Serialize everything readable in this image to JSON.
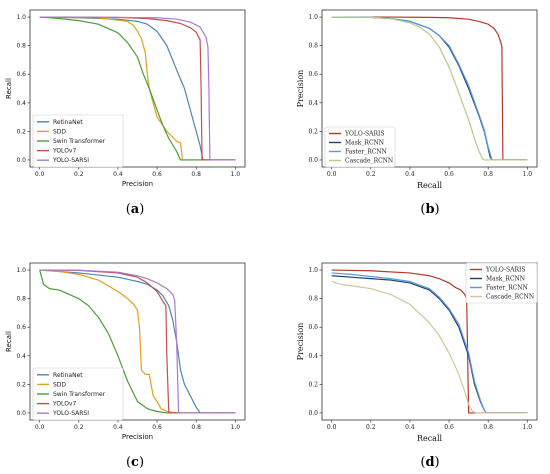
{
  "chart_data": [
    {
      "panel_label": {
        "open": "(",
        "letter": "a",
        "close": ")"
      },
      "type": "line",
      "title": "",
      "xlabel": "Precision",
      "ylabel": "Recall",
      "xlim": [
        0,
        1
      ],
      "ylim": [
        0,
        1
      ],
      "xticks": [
        "0.0",
        "0.2",
        "0.4",
        "0.6",
        "0.8",
        "1.0"
      ],
      "yticks": [
        "0.0",
        "0.2",
        "0.4",
        "0.6",
        "0.8",
        "1.0"
      ],
      "legend_position": "bottom-left",
      "grid": false,
      "series": [
        {
          "name": "RetinaNet",
          "color": "#4b86b4",
          "x": [
            0,
            0.2,
            0.4,
            0.5,
            0.55,
            0.6,
            0.65,
            0.7,
            0.74,
            0.78,
            0.8,
            0.82,
            0.83,
            0.835,
            1.0
          ],
          "y": [
            1,
            0.995,
            0.985,
            0.97,
            0.95,
            0.9,
            0.8,
            0.63,
            0.5,
            0.3,
            0.2,
            0.1,
            0.03,
            0,
            0
          ]
        },
        {
          "name": "SDD",
          "color": "#e0a020",
          "x": [
            0,
            0.3,
            0.45,
            0.48,
            0.5,
            0.52,
            0.54,
            0.55,
            0.56,
            0.58,
            0.6,
            0.65,
            0.7,
            0.72,
            0.73,
            1.0
          ],
          "y": [
            1,
            0.995,
            0.97,
            0.94,
            0.9,
            0.85,
            0.75,
            0.6,
            0.5,
            0.4,
            0.3,
            0.2,
            0.13,
            0.12,
            0,
            0
          ]
        },
        {
          "name": "Swin Transformer",
          "color": "#4e9a3a",
          "x": [
            0,
            0.1,
            0.2,
            0.3,
            0.4,
            0.45,
            0.5,
            0.53,
            0.56,
            0.6,
            0.63,
            0.66,
            0.7,
            0.72,
            1.0
          ],
          "y": [
            1,
            0.99,
            0.975,
            0.95,
            0.89,
            0.82,
            0.72,
            0.6,
            0.5,
            0.35,
            0.24,
            0.15,
            0.06,
            0,
            0
          ]
        },
        {
          "name": "YOLOv7",
          "color": "#c0504d",
          "x": [
            0,
            0.2,
            0.4,
            0.55,
            0.65,
            0.72,
            0.77,
            0.8,
            0.82,
            0.825,
            0.83,
            1.0
          ],
          "y": [
            1,
            0.999,
            0.997,
            0.99,
            0.975,
            0.955,
            0.925,
            0.895,
            0.84,
            0.5,
            0,
            0
          ]
        },
        {
          "name": "YOLO-SARSI",
          "color": "#a67ad0",
          "x": [
            0,
            0.2,
            0.4,
            0.6,
            0.7,
            0.77,
            0.82,
            0.85,
            0.86,
            0.865,
            0.87,
            1.0
          ],
          "y": [
            1,
            0.999,
            0.998,
            0.995,
            0.985,
            0.965,
            0.93,
            0.86,
            0.79,
            0.5,
            0,
            0
          ]
        }
      ]
    },
    {
      "panel_label": {
        "open": "(",
        "letter": "b",
        "close": ")"
      },
      "type": "line",
      "title": "",
      "xlabel": "Recall",
      "ylabel": "Precision",
      "xlim": [
        0,
        1
      ],
      "ylim": [
        0,
        1
      ],
      "xticks": [
        "0.0",
        "0.2",
        "0.4",
        "0.6",
        "0.8",
        "1.0"
      ],
      "yticks": [
        "0.0",
        "0.2",
        "0.4",
        "0.6",
        "0.8",
        "1.0"
      ],
      "legend_position": "bottom-left",
      "grid": false,
      "series": [
        {
          "name": "YOLO-SARIS",
          "color": "#b03a2e",
          "x": [
            0,
            0.3,
            0.5,
            0.6,
            0.7,
            0.75,
            0.8,
            0.83,
            0.85,
            0.865,
            0.87,
            0.875,
            1.0
          ],
          "y": [
            1,
            1,
            0.998,
            0.995,
            0.985,
            0.97,
            0.95,
            0.92,
            0.88,
            0.82,
            0.79,
            0,
            0
          ]
        },
        {
          "name": "Mask_RCNN",
          "color": "#1f3d7a",
          "x": [
            0,
            0.2,
            0.3,
            0.4,
            0.5,
            0.55,
            0.6,
            0.65,
            0.7,
            0.75,
            0.78,
            0.8,
            0.81,
            0.82,
            1.0
          ],
          "y": [
            1,
            0.998,
            0.99,
            0.97,
            0.92,
            0.87,
            0.79,
            0.66,
            0.5,
            0.32,
            0.2,
            0.08,
            0.02,
            0,
            0
          ]
        },
        {
          "name": "Faster_RCNN",
          "color": "#5b9bd5",
          "x": [
            0,
            0.2,
            0.3,
            0.4,
            0.5,
            0.55,
            0.6,
            0.65,
            0.7,
            0.75,
            0.78,
            0.8,
            0.815,
            0.82,
            1.0
          ],
          "y": [
            1,
            0.998,
            0.99,
            0.97,
            0.92,
            0.87,
            0.8,
            0.67,
            0.52,
            0.33,
            0.21,
            0.09,
            0.02,
            0,
            0
          ]
        },
        {
          "name": "Cascade_RCNN",
          "color": "#b5c98a",
          "x": [
            0,
            0.2,
            0.3,
            0.4,
            0.45,
            0.5,
            0.55,
            0.6,
            0.65,
            0.7,
            0.73,
            0.75,
            0.77,
            0.78,
            1.0
          ],
          "y": [
            1,
            0.998,
            0.99,
            0.96,
            0.93,
            0.88,
            0.79,
            0.65,
            0.47,
            0.28,
            0.15,
            0.07,
            0.01,
            0,
            0
          ]
        }
      ]
    },
    {
      "panel_label": {
        "open": "(",
        "letter": "c",
        "close": ")"
      },
      "type": "line",
      "title": "",
      "xlabel": "Precision",
      "ylabel": "Recall",
      "xlim": [
        0,
        1
      ],
      "ylim": [
        0,
        1
      ],
      "xticks": [
        "0.0",
        "0.2",
        "0.4",
        "0.6",
        "0.8",
        "1.0"
      ],
      "yticks": [
        "0.0",
        "0.2",
        "0.4",
        "0.6",
        "0.8",
        "1.0"
      ],
      "legend_position": "bottom-left",
      "grid": false,
      "series": [
        {
          "name": "RetinaNet",
          "color": "#4b86b4",
          "x": [
            0,
            0.1,
            0.2,
            0.3,
            0.4,
            0.5,
            0.55,
            0.6,
            0.63,
            0.66,
            0.68,
            0.7,
            0.72,
            0.74,
            0.77,
            0.8,
            0.82,
            1.0
          ],
          "y": [
            1,
            0.99,
            0.98,
            0.965,
            0.95,
            0.92,
            0.9,
            0.86,
            0.82,
            0.75,
            0.65,
            0.5,
            0.3,
            0.2,
            0.12,
            0.04,
            0,
            0
          ]
        },
        {
          "name": "SDD",
          "color": "#e0a020",
          "x": [
            0,
            0.1,
            0.2,
            0.3,
            0.35,
            0.4,
            0.45,
            0.48,
            0.5,
            0.51,
            0.52,
            0.54,
            0.56,
            0.58,
            0.6,
            0.62,
            0.65,
            0.7,
            1.0
          ],
          "y": [
            1,
            0.99,
            0.97,
            0.93,
            0.89,
            0.85,
            0.8,
            0.76,
            0.72,
            0.6,
            0.3,
            0.27,
            0.27,
            0.12,
            0.08,
            0.03,
            0.01,
            0,
            0
          ]
        },
        {
          "name": "Swin Transformer",
          "color": "#4e9a3a",
          "x": [
            0,
            0.02,
            0.05,
            0.1,
            0.15,
            0.2,
            0.25,
            0.3,
            0.35,
            0.4,
            0.45,
            0.5,
            0.55,
            0.6,
            0.65,
            0.7,
            1.0
          ],
          "y": [
            1,
            0.9,
            0.87,
            0.86,
            0.83,
            0.8,
            0.75,
            0.67,
            0.56,
            0.4,
            0.22,
            0.08,
            0.03,
            0.01,
            0,
            0,
            0
          ]
        },
        {
          "name": "YOLOv7",
          "color": "#c0504d",
          "x": [
            0,
            0.2,
            0.4,
            0.5,
            0.55,
            0.6,
            0.63,
            0.645,
            0.65,
            0.66,
            1.0
          ],
          "y": [
            1,
            0.998,
            0.98,
            0.95,
            0.91,
            0.85,
            0.78,
            0.75,
            0.4,
            0,
            0
          ]
        },
        {
          "name": "YOLO-SARSI",
          "color": "#a67ad0",
          "x": [
            0,
            0.2,
            0.4,
            0.5,
            0.55,
            0.6,
            0.65,
            0.68,
            0.69,
            0.7,
            0.71,
            1.0
          ],
          "y": [
            1,
            0.999,
            0.985,
            0.96,
            0.94,
            0.91,
            0.87,
            0.83,
            0.79,
            0.5,
            0,
            0
          ]
        }
      ]
    },
    {
      "panel_label": {
        "open": "(",
        "letter": "d",
        "close": ")"
      },
      "type": "line",
      "title": "",
      "xlabel": "Recall",
      "ylabel": "Precision",
      "xlim": [
        0,
        1
      ],
      "ylim": [
        0,
        1
      ],
      "xticks": [
        "0.0",
        "0.2",
        "0.4",
        "0.6",
        "0.8",
        "1.0"
      ],
      "yticks": [
        "0.0",
        "0.2",
        "0.4",
        "0.6",
        "0.8",
        "1.0"
      ],
      "legend_position": "top-right",
      "grid": false,
      "series": [
        {
          "name": "YOLO-SARIS",
          "color": "#b03a2e",
          "x": [
            0,
            0.2,
            0.4,
            0.5,
            0.55,
            0.6,
            0.63,
            0.66,
            0.68,
            0.69,
            0.7,
            1.0
          ],
          "y": [
            1,
            0.995,
            0.98,
            0.96,
            0.94,
            0.91,
            0.88,
            0.86,
            0.83,
            0.8,
            0,
            0
          ]
        },
        {
          "name": "Mask_RCNN",
          "color": "#1f3d7a",
          "x": [
            0,
            0.1,
            0.2,
            0.3,
            0.4,
            0.5,
            0.55,
            0.6,
            0.65,
            0.7,
            0.73,
            0.76,
            0.78,
            0.79,
            1.0
          ],
          "y": [
            0.96,
            0.95,
            0.94,
            0.93,
            0.91,
            0.86,
            0.8,
            0.72,
            0.6,
            0.4,
            0.2,
            0.08,
            0.02,
            0,
            0
          ]
        },
        {
          "name": "Faster_RCNN",
          "color": "#5b9bd5",
          "x": [
            0,
            0.1,
            0.2,
            0.3,
            0.4,
            0.5,
            0.55,
            0.6,
            0.65,
            0.7,
            0.73,
            0.76,
            0.78,
            0.79,
            1.0
          ],
          "y": [
            0.98,
            0.97,
            0.955,
            0.94,
            0.92,
            0.87,
            0.81,
            0.73,
            0.62,
            0.42,
            0.22,
            0.09,
            0.02,
            0,
            0
          ]
        },
        {
          "name": "Cascade_RCNN",
          "color": "#d2c49a",
          "x": [
            0,
            0.05,
            0.1,
            0.2,
            0.3,
            0.4,
            0.5,
            0.55,
            0.6,
            0.65,
            0.68,
            0.7,
            0.72,
            0.74,
            1.0
          ],
          "y": [
            0.92,
            0.9,
            0.89,
            0.87,
            0.83,
            0.76,
            0.63,
            0.54,
            0.42,
            0.27,
            0.15,
            0.06,
            0.01,
            0,
            0
          ]
        }
      ]
    }
  ]
}
